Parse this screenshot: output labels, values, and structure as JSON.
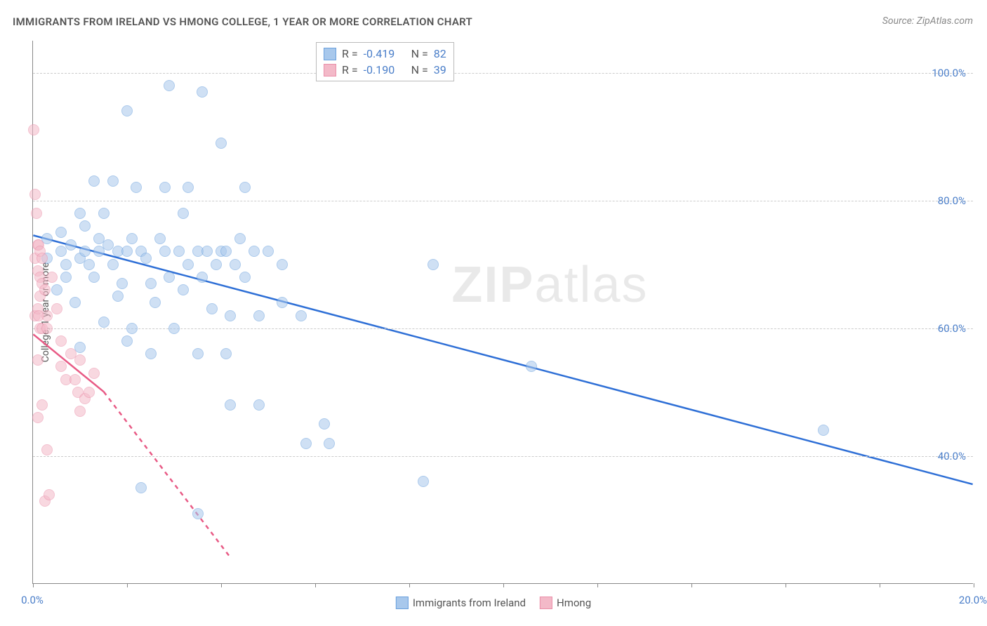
{
  "title": "IMMIGRANTS FROM IRELAND VS HMONG COLLEGE, 1 YEAR OR MORE CORRELATION CHART",
  "source": "Source: ZipAtlas.com",
  "ylabel": "College, 1 year or more",
  "watermark_a": "ZIP",
  "watermark_b": "atlas",
  "chart": {
    "type": "scatter",
    "background_color": "#ffffff",
    "grid_color": "#cccccc",
    "axis_color": "#888888",
    "xlim": [
      0,
      20
    ],
    "ylim": [
      20,
      105
    ],
    "xticks": [
      0,
      2,
      4,
      6,
      8,
      10,
      12,
      14,
      16,
      18,
      20
    ],
    "xtick_labels": {
      "0": "0.0%",
      "20": "20.0%"
    },
    "yticks": [
      40,
      60,
      80,
      100
    ],
    "ytick_labels": {
      "40": "40.0%",
      "60": "60.0%",
      "80": "80.0%",
      "100": "100.0%"
    },
    "tick_fontsize": 15,
    "tick_color": "#4a7ec9",
    "label_fontsize": 14,
    "marker_radius": 8,
    "marker_opacity": 0.55,
    "series": [
      {
        "name": "Immigrants from Ireland",
        "color_fill": "#a8c8ec",
        "color_stroke": "#6aa0dd",
        "trend_color": "#2e6fd6",
        "trend_width": 2.5,
        "trend_solid": [
          [
            0.0,
            74.5
          ],
          [
            20.0,
            35.5
          ]
        ],
        "R": "-0.419",
        "N": "82",
        "points": [
          [
            0.3,
            71
          ],
          [
            0.3,
            74
          ],
          [
            0.5,
            66
          ],
          [
            0.6,
            72
          ],
          [
            0.6,
            75
          ],
          [
            0.7,
            68
          ],
          [
            0.7,
            70
          ],
          [
            0.8,
            73
          ],
          [
            0.9,
            64
          ],
          [
            1.0,
            71
          ],
          [
            1.0,
            78
          ],
          [
            1.1,
            72
          ],
          [
            1.1,
            76
          ],
          [
            1.2,
            70
          ],
          [
            1.3,
            83
          ],
          [
            1.3,
            68
          ],
          [
            1.4,
            72
          ],
          [
            1.4,
            74
          ],
          [
            1.5,
            61
          ],
          [
            1.5,
            78
          ],
          [
            1.6,
            73
          ],
          [
            1.7,
            83
          ],
          [
            1.7,
            70
          ],
          [
            1.8,
            72
          ],
          [
            1.8,
            65
          ],
          [
            1.9,
            67
          ],
          [
            2.0,
            94
          ],
          [
            2.0,
            72
          ],
          [
            2.1,
            60
          ],
          [
            2.1,
            74
          ],
          [
            2.2,
            82
          ],
          [
            2.3,
            72
          ],
          [
            2.3,
            35
          ],
          [
            2.4,
            71
          ],
          [
            2.5,
            67
          ],
          [
            2.5,
            56
          ],
          [
            2.6,
            64
          ],
          [
            2.7,
            74
          ],
          [
            2.8,
            82
          ],
          [
            2.8,
            72
          ],
          [
            2.9,
            98
          ],
          [
            2.9,
            68
          ],
          [
            3.0,
            60
          ],
          [
            3.1,
            72
          ],
          [
            3.2,
            66
          ],
          [
            3.2,
            78
          ],
          [
            3.3,
            82
          ],
          [
            3.3,
            70
          ],
          [
            3.5,
            56
          ],
          [
            3.5,
            72
          ],
          [
            3.5,
            31
          ],
          [
            3.6,
            97
          ],
          [
            3.6,
            68
          ],
          [
            3.7,
            72
          ],
          [
            3.8,
            63
          ],
          [
            3.9,
            70
          ],
          [
            4.0,
            72
          ],
          [
            4.0,
            89
          ],
          [
            4.1,
            56
          ],
          [
            4.1,
            72
          ],
          [
            4.2,
            62
          ],
          [
            4.2,
            48
          ],
          [
            4.3,
            70
          ],
          [
            4.4,
            74
          ],
          [
            4.5,
            82
          ],
          [
            4.5,
            68
          ],
          [
            4.7,
            72
          ],
          [
            4.8,
            62
          ],
          [
            4.8,
            48
          ],
          [
            5.0,
            72
          ],
          [
            5.3,
            64
          ],
          [
            5.3,
            70
          ],
          [
            5.7,
            62
          ],
          [
            5.8,
            42
          ],
          [
            6.2,
            45
          ],
          [
            6.3,
            42
          ],
          [
            8.3,
            36
          ],
          [
            8.5,
            70
          ],
          [
            10.6,
            54
          ],
          [
            16.8,
            44
          ],
          [
            1.0,
            57
          ],
          [
            2.0,
            58
          ]
        ]
      },
      {
        "name": "Hmong",
        "color_fill": "#f3b9c8",
        "color_stroke": "#ea8fa9",
        "trend_color": "#e85a85",
        "trend_width": 2.5,
        "trend_solid": [
          [
            0.0,
            59.0
          ],
          [
            1.5,
            50.0
          ]
        ],
        "trend_dashed": [
          [
            1.5,
            50.0
          ],
          [
            4.2,
            24.0
          ]
        ],
        "R": "-0.190",
        "N": "39",
        "points": [
          [
            0.02,
            91
          ],
          [
            0.05,
            81
          ],
          [
            0.08,
            78
          ],
          [
            0.1,
            73
          ],
          [
            0.12,
            73
          ],
          [
            0.05,
            71
          ],
          [
            0.1,
            69
          ],
          [
            0.15,
            72
          ],
          [
            0.15,
            68
          ],
          [
            0.2,
            71
          ],
          [
            0.2,
            67
          ],
          [
            0.05,
            62
          ],
          [
            0.1,
            63
          ],
          [
            0.12,
            62
          ],
          [
            0.15,
            65
          ],
          [
            0.15,
            60
          ],
          [
            0.2,
            60
          ],
          [
            0.25,
            66
          ],
          [
            0.3,
            62
          ],
          [
            0.3,
            60
          ],
          [
            0.4,
            68
          ],
          [
            0.5,
            63
          ],
          [
            0.6,
            58
          ],
          [
            0.6,
            54
          ],
          [
            0.7,
            52
          ],
          [
            0.8,
            56
          ],
          [
            0.9,
            52
          ],
          [
            0.95,
            50
          ],
          [
            1.0,
            55
          ],
          [
            1.0,
            47
          ],
          [
            1.1,
            49
          ],
          [
            1.2,
            50
          ],
          [
            1.3,
            53
          ],
          [
            0.2,
            48
          ],
          [
            0.1,
            46
          ],
          [
            0.3,
            41
          ],
          [
            0.25,
            33
          ],
          [
            0.35,
            34
          ],
          [
            0.1,
            55
          ]
        ]
      }
    ]
  },
  "legend_top": {
    "R_label": "R =",
    "N_label": "N ="
  },
  "legend_bottom": {
    "items": [
      "Immigrants from Ireland",
      "Hmong"
    ]
  }
}
